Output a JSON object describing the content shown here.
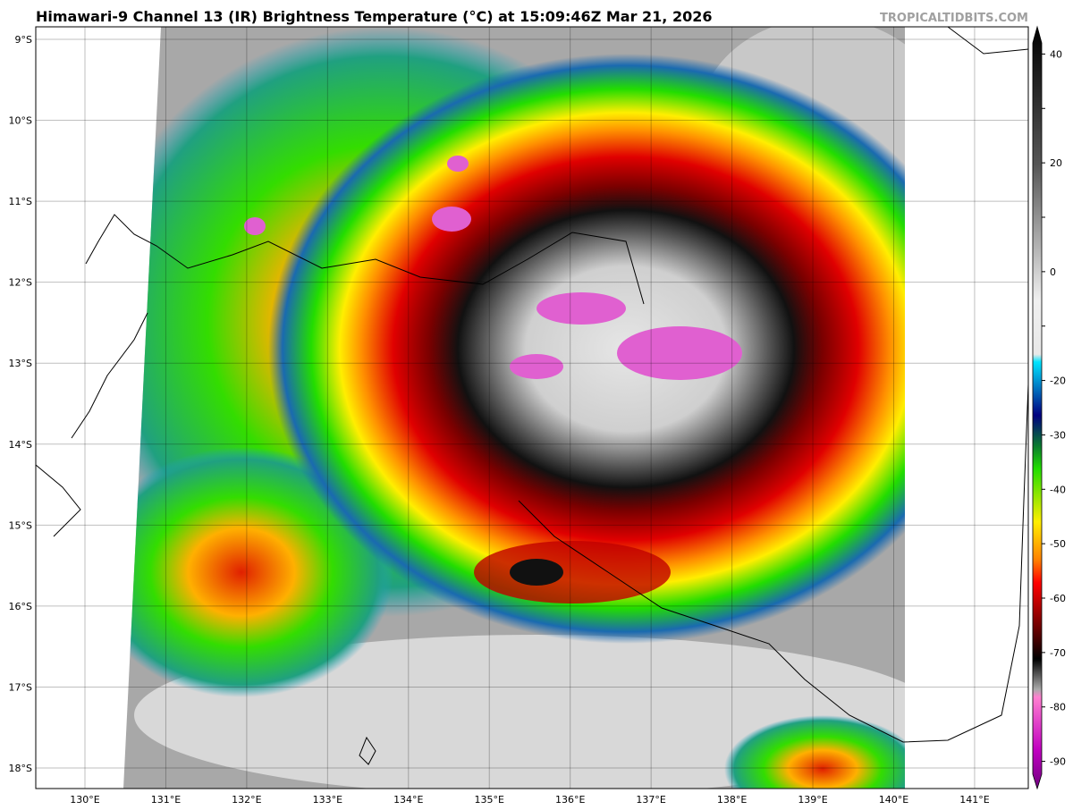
{
  "header": {
    "title": "Himawari-9 Channel 13 (IR) Brightness Temperature (°C) at 15:09:46Z Mar 21, 2026",
    "credit": "TROPICALTIDBITS.COM"
  },
  "map": {
    "lat_labels": [
      "9°S",
      "10°S",
      "11°S",
      "12°S",
      "13°S",
      "14°S",
      "15°S",
      "16°S",
      "17°S",
      "18°S"
    ],
    "lon_labels": [
      "130°E",
      "131°E",
      "132°E",
      "133°E",
      "134°E",
      "135°E",
      "136°E",
      "137°E",
      "138°E",
      "139°E",
      "140°E",
      "141°E"
    ]
  },
  "colorbar": {
    "range": [
      45,
      -95
    ],
    "ticks": [
      40,
      30,
      20,
      10,
      0,
      -10,
      -20,
      -30,
      -40,
      -50,
      -60,
      -70,
      -80,
      -90
    ],
    "labeled_ticks": [
      40,
      20,
      0,
      -20,
      -30,
      -40,
      -50,
      -60,
      -70,
      -80,
      -90
    ]
  }
}
